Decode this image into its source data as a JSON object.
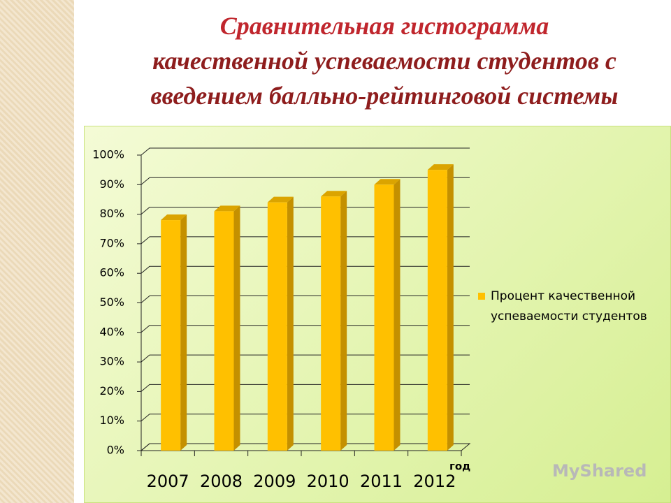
{
  "chart_data": {
    "type": "bar3d",
    "title": [
      "Сравнительная гистограмма",
      "качественной успеваемости студентов с",
      "введением балльно-рейтинговой системы"
    ],
    "categories": [
      "2007",
      "2008",
      "2009",
      "2010",
      "2011",
      "2012"
    ],
    "x_label": "год",
    "series": [
      {
        "name": "Процент качественной успеваемости студентов",
        "color": "#ffc000",
        "values": [
          78,
          81,
          84,
          86,
          90,
          95
        ]
      }
    ],
    "ylim": [
      0,
      100
    ],
    "yticks": [
      {
        "value": 0,
        "label": "0%"
      },
      {
        "value": 10,
        "label": "10%"
      },
      {
        "value": 20,
        "label": "20%"
      },
      {
        "value": 30,
        "label": "30%"
      },
      {
        "value": 40,
        "label": "40%"
      },
      {
        "value": 50,
        "label": "50%"
      },
      {
        "value": 60,
        "label": "60%"
      },
      {
        "value": 70,
        "label": "70%"
      },
      {
        "value": 80,
        "label": "80%"
      },
      {
        "value": 90,
        "label": "90%"
      },
      {
        "value": 100,
        "label": "100%"
      }
    ],
    "grid": true,
    "legend": "right",
    "watermark": "MyShared"
  }
}
